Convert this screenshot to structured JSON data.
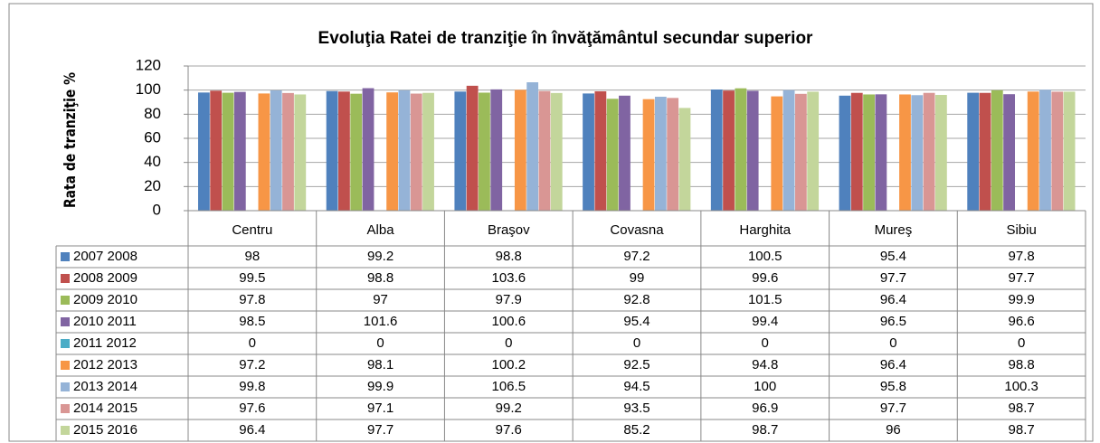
{
  "chart_data": {
    "type": "bar",
    "title": "Evoluţia Ratei de tranziţie în învăţământul secundar superior",
    "y_label": "Rata de tranziţie %",
    "categories": [
      "Centru",
      "Alba",
      "Braşov",
      "Covasna",
      "Harghita",
      "Mureş",
      "Sibiu"
    ],
    "ylim": [
      0,
      120
    ],
    "yticks": [
      0,
      20,
      40,
      60,
      80,
      100,
      120
    ],
    "grid": true,
    "series": [
      {
        "name": "2007 2008",
        "color": "#4f81bd",
        "values": [
          98,
          99.2,
          98.8,
          97.2,
          100.5,
          95.4,
          97.8
        ]
      },
      {
        "name": "2008 2009",
        "color": "#c0504d",
        "values": [
          99.5,
          98.8,
          103.6,
          99,
          99.6,
          97.7,
          97.7
        ]
      },
      {
        "name": "2009 2010",
        "color": "#9bbb59",
        "values": [
          97.8,
          97,
          97.9,
          92.8,
          101.5,
          96.4,
          99.9
        ]
      },
      {
        "name": "2010 2011",
        "color": "#8064a2",
        "values": [
          98.5,
          101.6,
          100.6,
          95.4,
          99.4,
          96.5,
          96.6
        ]
      },
      {
        "name": "2011 2012",
        "color": "#4bacc6",
        "values": [
          0,
          0,
          0,
          0,
          0,
          0,
          0
        ]
      },
      {
        "name": "2012 2013",
        "color": "#f79646",
        "values": [
          97.2,
          98.1,
          100.2,
          92.5,
          94.8,
          96.4,
          98.8
        ]
      },
      {
        "name": "2013 2014",
        "color": "#95b3d7",
        "values": [
          99.8,
          99.9,
          106.5,
          94.5,
          100,
          95.8,
          100.3
        ]
      },
      {
        "name": "2014 2015",
        "color": "#d99694",
        "values": [
          97.6,
          97.1,
          99.2,
          93.5,
          96.9,
          97.7,
          98.7
        ]
      },
      {
        "name": "2015 2016",
        "color": "#c3d69b",
        "values": [
          96.4,
          97.7,
          97.6,
          85.2,
          98.7,
          96,
          98.7
        ]
      }
    ]
  }
}
